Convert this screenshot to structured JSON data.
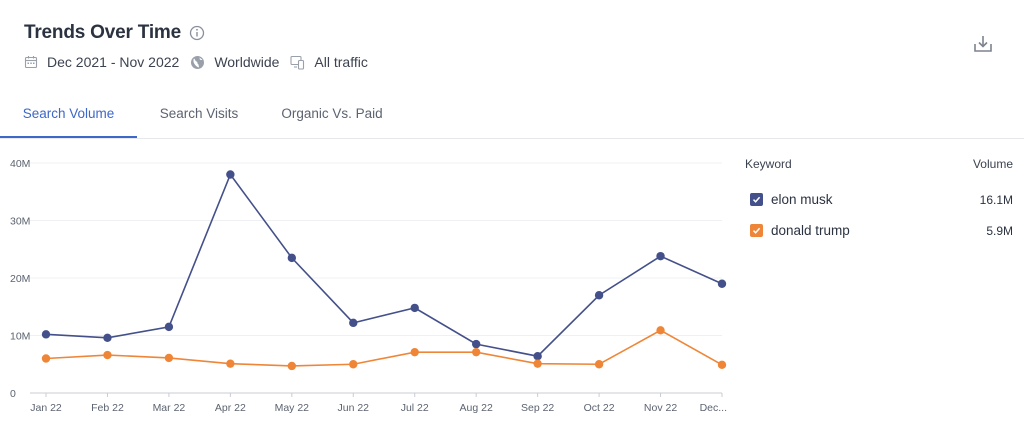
{
  "header": {
    "title": "Trends Over Time",
    "date_range": "Dec 2021 - Nov 2022",
    "region": "Worldwide",
    "traffic": "All traffic"
  },
  "tabs": [
    {
      "label": "Search Volume",
      "active": true
    },
    {
      "label": "Search Visits",
      "active": false
    },
    {
      "label": "Organic Vs. Paid",
      "active": false
    }
  ],
  "legend": {
    "keyword_header": "Keyword",
    "volume_header": "Volume",
    "items": [
      {
        "name": "elon musk",
        "volume": "16.1M",
        "color": "#44508a",
        "checked": true
      },
      {
        "name": "donald trump",
        "volume": "5.9M",
        "color": "#ef8637",
        "checked": true
      }
    ]
  },
  "colors": {
    "accent": "#3d67c8",
    "grid": "#eef0f3",
    "axis": "#c8ccd3"
  },
  "chart_data": {
    "type": "line",
    "categories": [
      "Jan 22",
      "Feb 22",
      "Mar 22",
      "Apr 22",
      "May 22",
      "Jun 22",
      "Jul 22",
      "Aug 22",
      "Sep 22",
      "Oct 22",
      "Nov 22",
      "Dec..."
    ],
    "series": [
      {
        "name": "elon musk",
        "color": "#44508a",
        "values": [
          10.2,
          9.6,
          11.5,
          38.0,
          23.5,
          12.2,
          14.8,
          8.5,
          6.4,
          17.0,
          23.8,
          19.0
        ]
      },
      {
        "name": "donald trump",
        "color": "#ef8637",
        "values": [
          6.0,
          6.6,
          6.1,
          5.1,
          4.7,
          5.0,
          7.1,
          7.1,
          5.1,
          5.0,
          10.9,
          4.9
        ]
      }
    ],
    "y_ticks": [
      0,
      10,
      20,
      30,
      40
    ],
    "y_tick_labels": [
      "0",
      "10M",
      "20M",
      "30M",
      "40M"
    ],
    "ylim": [
      0,
      40
    ],
    "xlabel": "",
    "ylabel": "",
    "grid": true
  }
}
